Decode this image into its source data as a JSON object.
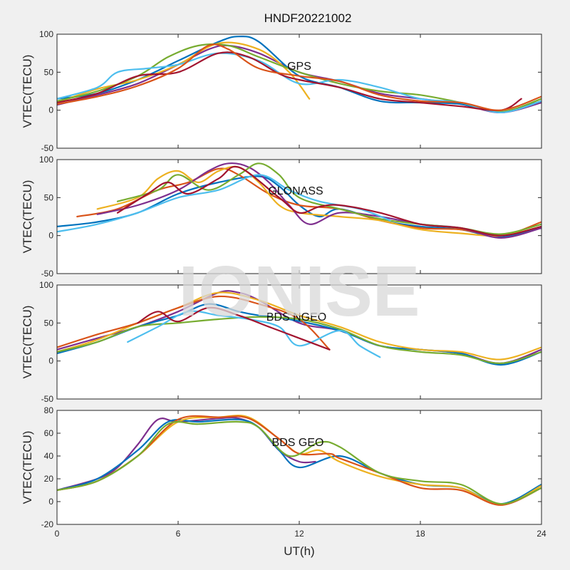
{
  "figure": {
    "title": "HNDF20221002",
    "watermark": "IONISE",
    "xlabel": "UT(h)",
    "xticks": [
      "0",
      "6",
      "12",
      "18",
      "24"
    ]
  },
  "chart_data": [
    {
      "type": "line",
      "annotation": "GPS",
      "ylabel": "VTEC(TECU)",
      "xlim": [
        0,
        24
      ],
      "ylim": [
        -50,
        100
      ],
      "yticks": [
        -50,
        0,
        50,
        100
      ],
      "series": [
        {
          "color": "#7E2F8E",
          "x": [
            0,
            2,
            4,
            6,
            7.5,
            8.5,
            10,
            12,
            14,
            16,
            18,
            20,
            22,
            24
          ],
          "y": [
            7,
            20,
            35,
            60,
            80,
            85,
            75,
            50,
            38,
            22,
            15,
            8,
            -3,
            10
          ]
        },
        {
          "color": "#0072BD",
          "x": [
            0,
            2,
            4,
            6,
            8,
            9,
            10,
            12,
            14,
            16,
            18,
            20,
            22,
            24
          ],
          "y": [
            15,
            22,
            40,
            65,
            90,
            97,
            90,
            45,
            30,
            12,
            10,
            8,
            -2,
            12
          ]
        },
        {
          "color": "#EDB120",
          "x": [
            0,
            2,
            4,
            6,
            8,
            10,
            11.5,
            12.5
          ],
          "y": [
            10,
            28,
            40,
            60,
            88,
            80,
            50,
            15
          ]
        },
        {
          "color": "#77AC30",
          "x": [
            0,
            2,
            4,
            5.5,
            7,
            8.5,
            10,
            12,
            14,
            16,
            18,
            20,
            22,
            24
          ],
          "y": [
            12,
            25,
            45,
            70,
            85,
            85,
            70,
            50,
            35,
            25,
            20,
            10,
            -2,
            15
          ]
        },
        {
          "color": "#4DBEEE",
          "x": [
            0,
            2,
            3,
            4.5,
            6,
            8,
            10,
            12,
            14,
            16,
            18,
            20,
            22,
            24
          ],
          "y": [
            15,
            30,
            50,
            55,
            60,
            75,
            65,
            35,
            40,
            30,
            15,
            10,
            -3,
            12
          ]
        },
        {
          "color": "#A2142F",
          "x": [
            0,
            2,
            4,
            6,
            8,
            9.5,
            11,
            12,
            14,
            16,
            18,
            20,
            22,
            23
          ],
          "y": [
            10,
            22,
            45,
            50,
            75,
            70,
            48,
            40,
            30,
            15,
            10,
            5,
            0,
            15
          ]
        },
        {
          "color": "#D95319",
          "x": [
            0,
            2,
            4,
            6,
            7.5,
            8.5,
            10,
            12,
            14,
            16,
            18,
            20,
            22,
            24
          ],
          "y": [
            8,
            18,
            32,
            55,
            85,
            80,
            55,
            45,
            38,
            20,
            12,
            10,
            0,
            18
          ]
        }
      ]
    },
    {
      "type": "line",
      "annotation": "GLONASS",
      "ylabel": "VTEC(TECU)",
      "xlim": [
        0,
        24
      ],
      "ylim": [
        -50,
        100
      ],
      "yticks": [
        -50,
        0,
        50,
        100
      ],
      "series": [
        {
          "color": "#0072BD",
          "x": [
            0,
            2,
            4,
            6,
            8,
            10,
            11,
            12,
            13,
            14,
            16,
            18,
            20,
            22,
            24
          ],
          "y": [
            12,
            18,
            30,
            55,
            70,
            78,
            65,
            40,
            25,
            35,
            20,
            12,
            8,
            -2,
            10
          ]
        },
        {
          "color": "#D95319",
          "x": [
            1,
            3,
            5,
            6.5,
            8,
            9,
            10.5,
            12,
            14,
            16,
            18,
            20,
            22,
            24
          ],
          "y": [
            25,
            35,
            60,
            70,
            88,
            80,
            55,
            40,
            35,
            20,
            10,
            8,
            0,
            18
          ]
        },
        {
          "color": "#EDB120",
          "x": [
            2,
            4,
            5,
            6,
            7,
            8,
            9,
            10,
            11,
            12,
            14,
            16,
            18,
            20,
            22,
            24
          ],
          "y": [
            35,
            50,
            75,
            85,
            70,
            85,
            90,
            70,
            40,
            30,
            25,
            20,
            8,
            3,
            0,
            12
          ]
        },
        {
          "color": "#7E2F8E",
          "x": [
            2,
            4,
            6,
            7.5,
            8.5,
            9.5,
            10.5,
            11.5,
            12.5,
            14,
            16,
            18,
            20,
            22,
            24
          ],
          "y": [
            28,
            40,
            60,
            85,
            95,
            90,
            70,
            40,
            15,
            30,
            25,
            15,
            10,
            -3,
            10
          ]
        },
        {
          "color": "#77AC30",
          "x": [
            3,
            5,
            6,
            7.5,
            9,
            10,
            11,
            12,
            14,
            16,
            18,
            20,
            22,
            24
          ],
          "y": [
            45,
            60,
            80,
            60,
            80,
            95,
            80,
            50,
            35,
            22,
            15,
            10,
            2,
            15
          ]
        },
        {
          "color": "#4DBEEE",
          "x": [
            0,
            2,
            4,
            6,
            8,
            10,
            11.5,
            13,
            15,
            16.5
          ],
          "y": [
            5,
            15,
            30,
            50,
            60,
            80,
            60,
            45,
            35,
            20
          ]
        },
        {
          "color": "#A2142F",
          "x": [
            3,
            4.5,
            5.5,
            6.5,
            8,
            9,
            11,
            12,
            13,
            14,
            16,
            18,
            20,
            22,
            24
          ],
          "y": [
            30,
            55,
            70,
            55,
            75,
            90,
            50,
            30,
            38,
            40,
            30,
            15,
            10,
            0,
            12
          ]
        }
      ]
    },
    {
      "type": "line",
      "annotation": "BDS NGEO",
      "ylabel": "VTEC(TECU)",
      "xlim": [
        0,
        24
      ],
      "ylim": [
        -50,
        100
      ],
      "yticks": [
        -50,
        0,
        50,
        100
      ],
      "series": [
        {
          "color": "#7E2F8E",
          "x": [
            0,
            2,
            4,
            6,
            8,
            9,
            10,
            12,
            14,
            16,
            18,
            20,
            22,
            24
          ],
          "y": [
            15,
            30,
            45,
            65,
            90,
            90,
            80,
            50,
            40,
            20,
            15,
            10,
            -3,
            15
          ]
        },
        {
          "color": "#0072BD",
          "x": [
            0,
            2,
            4,
            6,
            7.5,
            9,
            10,
            11.5,
            14,
            16,
            18,
            20,
            22,
            24
          ],
          "y": [
            10,
            25,
            45,
            60,
            75,
            65,
            60,
            55,
            40,
            20,
            15,
            10,
            -5,
            12
          ]
        },
        {
          "color": "#EDB120",
          "x": [
            0,
            2,
            4,
            6,
            8,
            10,
            12,
            14,
            16,
            18,
            20,
            22,
            24
          ],
          "y": [
            12,
            28,
            50,
            70,
            90,
            80,
            60,
            45,
            25,
            15,
            12,
            2,
            18
          ]
        },
        {
          "color": "#D95319",
          "x": [
            0,
            2,
            4,
            6,
            8,
            10,
            12,
            13.5
          ],
          "y": [
            18,
            35,
            50,
            70,
            85,
            75,
            55,
            15
          ]
        },
        {
          "color": "#77AC30",
          "x": [
            0,
            2,
            4,
            6,
            8,
            10,
            12,
            14,
            16,
            18,
            20,
            22,
            24
          ],
          "y": [
            12,
            25,
            45,
            50,
            55,
            58,
            55,
            42,
            20,
            12,
            8,
            -3,
            12
          ]
        },
        {
          "color": "#4DBEEE",
          "x": [
            3.5,
            5,
            6.5,
            8,
            9.5,
            11,
            12,
            14,
            15,
            16
          ],
          "y": [
            25,
            45,
            65,
            60,
            55,
            45,
            20,
            40,
            20,
            5
          ]
        },
        {
          "color": "#A2142F",
          "x": [
            4,
            5,
            6,
            7.5,
            9,
            10.5,
            12,
            13.5
          ],
          "y": [
            50,
            65,
            52,
            70,
            60,
            45,
            30,
            15
          ]
        }
      ]
    },
    {
      "type": "line",
      "annotation": "BDS GEO",
      "ylabel": "VTEC(TECU)",
      "xlim": [
        0,
        24
      ],
      "ylim": [
        -20,
        80
      ],
      "yticks": [
        -20,
        0,
        20,
        40,
        60,
        80
      ],
      "series": [
        {
          "color": "#7E2F8E",
          "x": [
            0,
            2,
            3,
            4,
            5,
            6,
            8,
            9,
            10,
            11,
            12,
            12.8
          ],
          "y": [
            10,
            20,
            30,
            50,
            72,
            70,
            73,
            73,
            65,
            45,
            35,
            35
          ]
        },
        {
          "color": "#0072BD",
          "x": [
            0,
            2,
            4,
            5.5,
            7,
            9,
            10,
            11,
            12,
            14,
            16,
            18,
            20,
            22,
            24
          ],
          "y": [
            10,
            20,
            45,
            70,
            70,
            72,
            65,
            45,
            30,
            40,
            25,
            15,
            12,
            -2,
            15
          ]
        },
        {
          "color": "#EDB120",
          "x": [
            0,
            2,
            4,
            6,
            8,
            9.5,
            11,
            12,
            13,
            14,
            16,
            18,
            20,
            22,
            24
          ],
          "y": [
            10,
            18,
            40,
            70,
            74,
            74,
            55,
            42,
            45,
            35,
            22,
            15,
            12,
            -3,
            14
          ]
        },
        {
          "color": "#D95319",
          "x": [
            0,
            2,
            4,
            6,
            8,
            9.5,
            11,
            12,
            13.5,
            14,
            16,
            18,
            20,
            22,
            24
          ],
          "y": [
            10,
            18,
            40,
            72,
            74,
            73,
            55,
            42,
            42,
            38,
            25,
            12,
            10,
            -3,
            12
          ]
        },
        {
          "color": "#77AC30",
          "x": [
            0,
            2,
            4,
            5.5,
            7,
            9,
            10,
            11.5,
            13,
            14,
            16,
            18,
            20,
            22,
            24
          ],
          "y": [
            10,
            18,
            40,
            68,
            68,
            70,
            65,
            40,
            52,
            48,
            25,
            18,
            15,
            -2,
            12
          ]
        }
      ]
    }
  ]
}
